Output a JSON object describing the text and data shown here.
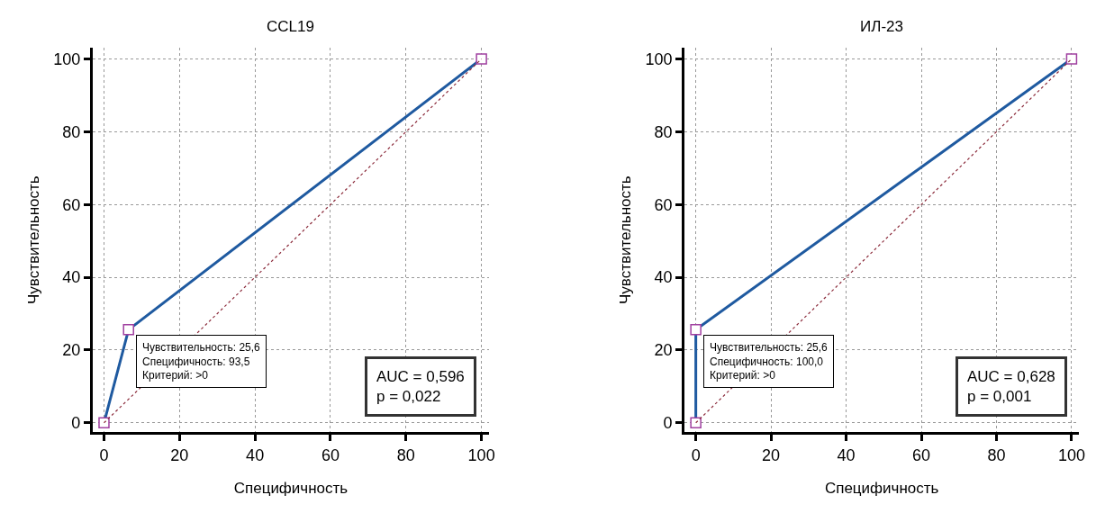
{
  "chart_data": [
    {
      "type": "line",
      "title": "CCL19",
      "xlabel": "Специфичность",
      "ylabel": "Чувствительность",
      "series": [
        {
          "name": null,
          "color": "#1f5aa0",
          "x": [
            0,
            6.5,
            100
          ],
          "values": [
            0,
            25.6,
            100
          ],
          "marker": "square",
          "line_style": "solid"
        },
        {
          "name": null,
          "color": "#8b2a3a",
          "x": [
            0,
            100
          ],
          "values": [
            0,
            100
          ],
          "marker": "none",
          "line_style": "dotted"
        }
      ],
      "xlim": [
        -3,
        102
      ],
      "ylim": [
        -2.5,
        103
      ],
      "xticks": [
        0,
        20,
        40,
        60,
        80,
        100
      ],
      "yticks": [
        0,
        20,
        40,
        60,
        80,
        100
      ],
      "grid": true,
      "annotations": [
        {
          "text": "Чувствительность: 25,6\nСпецифичность: 93,5\nКритерий: >0",
          "x": 6.5,
          "y": 25.6
        },
        "AUC = 0,596\np = 0,022"
      ]
    },
    {
      "type": "line",
      "title": "ИЛ-23",
      "xlabel": "Специфичность",
      "ylabel": "Чувствительность",
      "series": [
        {
          "name": null,
          "color": "#1f5aa0",
          "x": [
            0,
            0,
            100
          ],
          "values": [
            0,
            25.6,
            100
          ],
          "marker": "square",
          "line_style": "solid"
        },
        {
          "name": null,
          "color": "#8b2a3a",
          "x": [
            0,
            100
          ],
          "values": [
            0,
            100
          ],
          "marker": "none",
          "line_style": "dotted"
        }
      ],
      "xlim": [
        -3,
        102
      ],
      "ylim": [
        -2.5,
        103
      ],
      "xticks": [
        0,
        20,
        40,
        60,
        80,
        100
      ],
      "yticks": [
        0,
        20,
        40,
        60,
        80,
        100
      ],
      "grid": true,
      "annotations": [
        {
          "text": "Чувствительность: 25,6\nСпецифичность: 100,0\nКритерий: >0",
          "x": 0,
          "y": 25.6
        },
        "AUC = 0,628\np = 0,001"
      ]
    }
  ]
}
